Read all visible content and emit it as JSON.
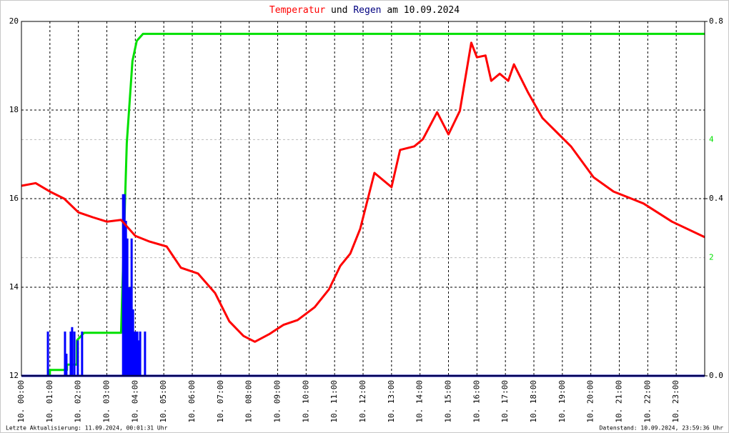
{
  "chart_data": {
    "type": "line",
    "title": [
      "Temperatur",
      "und",
      "Regen",
      "am 10.09.2024"
    ],
    "title_colors": [
      "#ff0000",
      "#000000",
      "#000080",
      "#000000"
    ],
    "notes": [
      "Letzte Aktualisierung: 11.09.2024, 00:01:31 Uhr",
      "Datenstand: 10.09.2024, 23:59:36 Uhr"
    ],
    "xlim": [
      0,
      24
    ],
    "xticks": [
      {
        "value": 0,
        "label": "10. 00:00"
      },
      {
        "value": 1,
        "label": "10. 01:00"
      },
      {
        "value": 2,
        "label": "10. 02:00"
      },
      {
        "value": 3,
        "label": "10. 03:00"
      },
      {
        "value": 4,
        "label": "10. 04:00"
      },
      {
        "value": 5,
        "label": "10. 05:00"
      },
      {
        "value": 6,
        "label": "10. 06:00"
      },
      {
        "value": 7,
        "label": "10. 07:00"
      },
      {
        "value": 8,
        "label": "10. 08:00"
      },
      {
        "value": 9,
        "label": "10. 09:00"
      },
      {
        "value": 10,
        "label": "10. 10:00"
      },
      {
        "value": 11,
        "label": "10. 11:00"
      },
      {
        "value": 12,
        "label": "10. 12:00"
      },
      {
        "value": 13,
        "label": "10. 13:00"
      },
      {
        "value": 14,
        "label": "10. 14:00"
      },
      {
        "value": 15,
        "label": "10. 15:00"
      },
      {
        "value": 16,
        "label": "10. 16:00"
      },
      {
        "value": 17,
        "label": "10. 17:00"
      },
      {
        "value": 18,
        "label": "10. 18:00"
      },
      {
        "value": 19,
        "label": "10. 19:00"
      },
      {
        "value": 20,
        "label": "10. 20:00"
      },
      {
        "value": 21,
        "label": "10. 21:00"
      },
      {
        "value": 22,
        "label": "10. 22:00"
      },
      {
        "value": 23,
        "label": "10. 23:00"
      }
    ],
    "ylim": [
      12,
      20
    ],
    "yticks": [
      12,
      14,
      16,
      18,
      20
    ],
    "y2lim": [
      0,
      0.8
    ],
    "y2ticks": [
      {
        "value": 0,
        "label": "0.0"
      },
      0.4,
      0.8
    ],
    "y3lim": [
      0,
      6
    ],
    "y3ticks": [
      2,
      4
    ],
    "y3color": "#00e000",
    "grid": true,
    "series": [
      {
        "name": "Temperatur",
        "type": "line",
        "axis": "y",
        "color": "#ff0000",
        "x": [
          0,
          0.5,
          1,
          1.5,
          2,
          2.5,
          3,
          3.5,
          4,
          4.5,
          5.1,
          5.6,
          6.2,
          6.8,
          7.3,
          7.8,
          8.2,
          8.7,
          9.2,
          9.7,
          10.3,
          10.8,
          11.2,
          11.55,
          11.9,
          12.4,
          13,
          13.3,
          13.8,
          14.1,
          14.6,
          15,
          15.4,
          15.8,
          16.0,
          16.3,
          16.5,
          16.8,
          17.1,
          17.3,
          17.8,
          18.3,
          18.8,
          19.3,
          20.1,
          20.8,
          21.85,
          22.85,
          24
        ],
        "values": [
          16.29,
          16.35,
          16.16,
          16.0,
          15.69,
          15.58,
          15.48,
          15.52,
          15.16,
          15.03,
          14.92,
          14.44,
          14.31,
          13.87,
          13.23,
          12.9,
          12.77,
          12.94,
          13.15,
          13.26,
          13.55,
          13.95,
          14.48,
          14.76,
          15.32,
          16.58,
          16.26,
          17.1,
          17.18,
          17.34,
          17.95,
          17.45,
          17.98,
          19.52,
          19.19,
          19.23,
          18.66,
          18.82,
          18.66,
          19.03,
          18.39,
          17.82,
          17.5,
          17.18,
          16.48,
          16.16,
          15.89,
          15.48,
          15.13
        ]
      },
      {
        "name": "Regen",
        "type": "bar",
        "axis": "y2",
        "color": "#0000ff",
        "x": [
          0.93,
          1.53,
          1.58,
          1.73,
          1.78,
          1.86,
          1.98,
          2.13,
          3.57,
          3.62,
          3.67,
          3.72,
          3.77,
          3.82,
          3.87,
          3.92,
          3.97,
          4.02,
          4.07,
          4.12,
          4.17,
          4.34
        ],
        "values": [
          0.1,
          0.1,
          0.05,
          0.1,
          0.11,
          0.1,
          0.08,
          0.1,
          0.41,
          0.41,
          0.35,
          0.31,
          0.2,
          0.2,
          0.31,
          0.15,
          0.1,
          0.1,
          0.1,
          0.08,
          0.1,
          0.1
        ]
      },
      {
        "type": "line",
        "axis": "y3",
        "color": "#00e000",
        "x": [
          0,
          1.0,
          1.0,
          1.6,
          1.6,
          1.95,
          1.95,
          2.2,
          3.5,
          3.7,
          3.9,
          4.05,
          4.27,
          24
        ],
        "values": [
          0,
          0,
          0.1,
          0.1,
          0.19,
          0.19,
          0.6,
          0.73,
          0.73,
          3.94,
          5.33,
          5.67,
          5.79,
          5.79
        ]
      }
    ]
  }
}
